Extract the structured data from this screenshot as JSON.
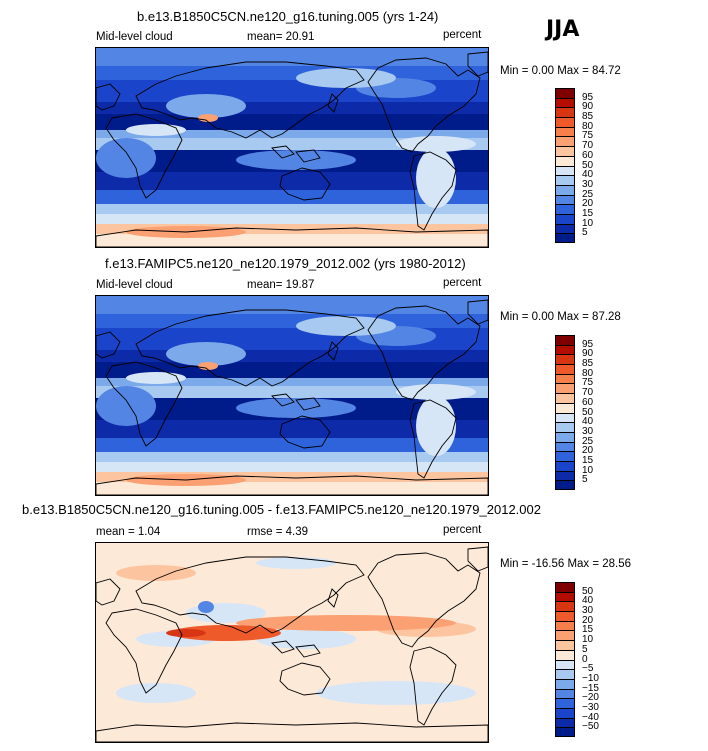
{
  "season_label": "JJA",
  "panels": [
    {
      "title": "b.e13.B1850C5CN.ne120_g16.tuning.005 (yrs 1-24)",
      "left_label": "Mid-level cloud",
      "stat_text": "mean=  20.91",
      "unit": "percent",
      "minmax": "Min =   0.00 Max =  84.72",
      "kind": "cloud",
      "colorbar": {
        "labels": [
          "95",
          "90",
          "85",
          "80",
          "75",
          "70",
          "60",
          "50",
          "40",
          "30",
          "25",
          "20",
          "15",
          "10",
          "5"
        ],
        "colors": [
          "#7f0000",
          "#b30d00",
          "#d83512",
          "#ee5a2a",
          "#f77f4a",
          "#fba072",
          "#fdc4a0",
          "#fde9d8",
          "#d6e6f7",
          "#a8c9f0",
          "#7ca9ea",
          "#5386e4",
          "#2f63dc",
          "#1a44c9",
          "#0d2aa8",
          "#001b8a"
        ]
      }
    },
    {
      "title": "f.e13.FAMIPC5.ne120_ne120.1979_2012.002 (yrs 1980-2012)",
      "left_label": "Mid-level cloud",
      "stat_text": "mean=  19.87",
      "unit": "percent",
      "minmax": "Min =   0.00 Max =  87.28",
      "kind": "cloud",
      "colorbar": {
        "labels": [
          "95",
          "90",
          "85",
          "80",
          "75",
          "70",
          "60",
          "50",
          "40",
          "30",
          "25",
          "20",
          "15",
          "10",
          "5"
        ],
        "colors": [
          "#7f0000",
          "#b30d00",
          "#d83512",
          "#ee5a2a",
          "#f77f4a",
          "#fba072",
          "#fdc4a0",
          "#fde9d8",
          "#d6e6f7",
          "#a8c9f0",
          "#7ca9ea",
          "#5386e4",
          "#2f63dc",
          "#1a44c9",
          "#0d2aa8",
          "#001b8a"
        ]
      }
    },
    {
      "title": "b.e13.B1850C5CN.ne120_g16.tuning.005 - f.e13.FAMIPC5.ne120_ne120.1979_2012.002",
      "left_label": "mean =   1.04",
      "stat_text": "rmse =    4.39",
      "unit": "percent",
      "minmax": "Min = -16.56 Max =  28.56",
      "kind": "diff",
      "colorbar": {
        "labels": [
          "50",
          "40",
          "30",
          "20",
          "15",
          "10",
          "5",
          "0",
          "−5",
          "−10",
          "−15",
          "−20",
          "−30",
          "−40",
          "−50"
        ],
        "colors": [
          "#7f0000",
          "#b30d00",
          "#d83512",
          "#ee5a2a",
          "#f77f4a",
          "#fba072",
          "#fdc4a0",
          "#fde9d8",
          "#d6e6f7",
          "#a8c9f0",
          "#7ca9ea",
          "#5386e4",
          "#2f63dc",
          "#1a44c9",
          "#0d2aa8",
          "#001b8a"
        ]
      }
    }
  ]
}
